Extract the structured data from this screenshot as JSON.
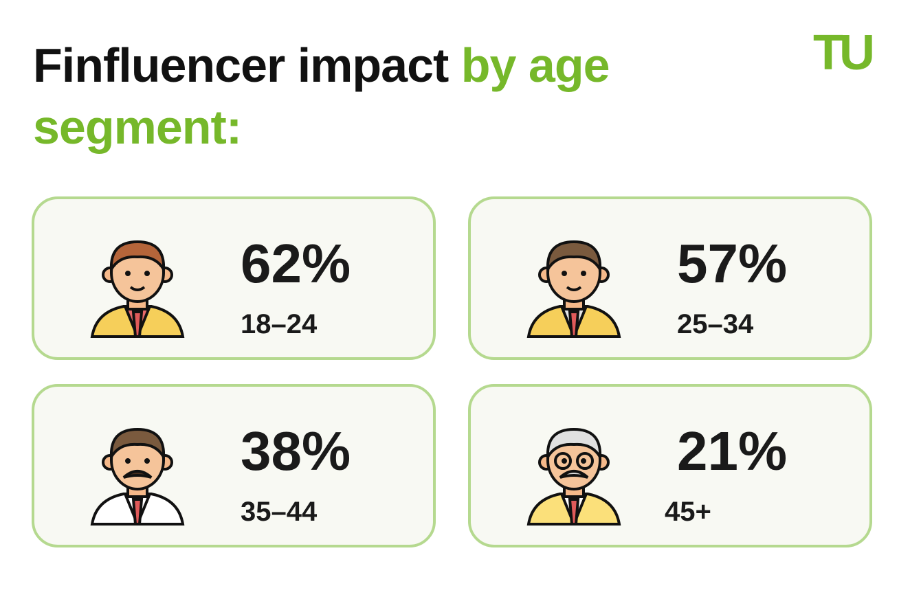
{
  "header": {
    "title_dark": "Finfluencer impact",
    "title_accent": "by age segment:",
    "logo": "TU"
  },
  "cards": [
    {
      "value": "62%",
      "label": "18–24"
    },
    {
      "value": "57%",
      "label": "25–34"
    },
    {
      "value": "38%",
      "label": "35–44"
    },
    {
      "value": "21%",
      "label": "45+"
    }
  ]
}
